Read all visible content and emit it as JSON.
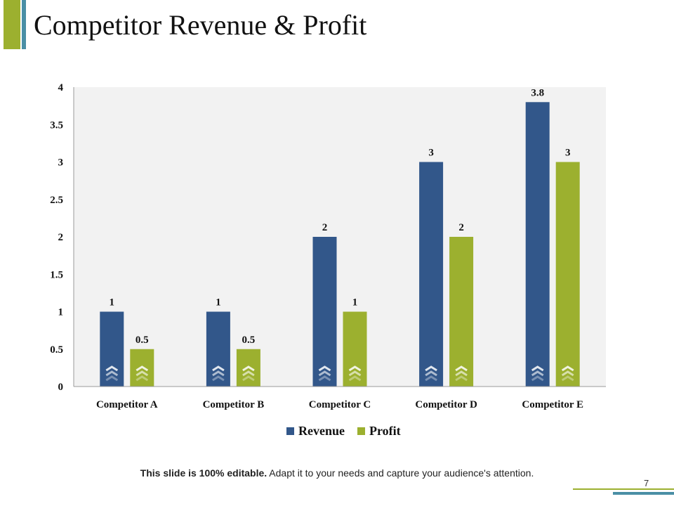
{
  "slide": {
    "title": "Competitor Revenue & Profit",
    "footer_bold": "This slide is 100% editable.",
    "footer_rest": " Adapt it to your needs and capture your audience's attention.",
    "page_number": "7"
  },
  "colors": {
    "revenue": "#32578a",
    "profit": "#9cb02f",
    "plot_background": "#f2f2f2",
    "accent_green": "#9cb02f",
    "accent_teal": "#4a8fa5"
  },
  "chart_data": {
    "type": "bar",
    "title": "",
    "xlabel": "",
    "ylabel": "",
    "categories": [
      "Competitor A",
      "Competitor B",
      "Competitor C",
      "Competitor D",
      "Competitor E"
    ],
    "series": [
      {
        "name": "Revenue",
        "values": [
          1,
          1,
          2,
          3,
          3.8
        ],
        "labels": [
          "1",
          "1",
          "2",
          "3",
          "3.8"
        ]
      },
      {
        "name": "Profit",
        "values": [
          0.5,
          0.5,
          1,
          2,
          3
        ],
        "labels": [
          "0.5",
          "0.5",
          "1",
          "2",
          "3"
        ]
      }
    ],
    "ylim": [
      0,
      4
    ],
    "yticks": [
      "0",
      "0.5",
      "1",
      "1.5",
      "2",
      "2.5",
      "3",
      "3.5",
      "4"
    ],
    "grid": false,
    "legend_position": "bottom",
    "bar_icon": "chevron-up-stack-icon"
  }
}
